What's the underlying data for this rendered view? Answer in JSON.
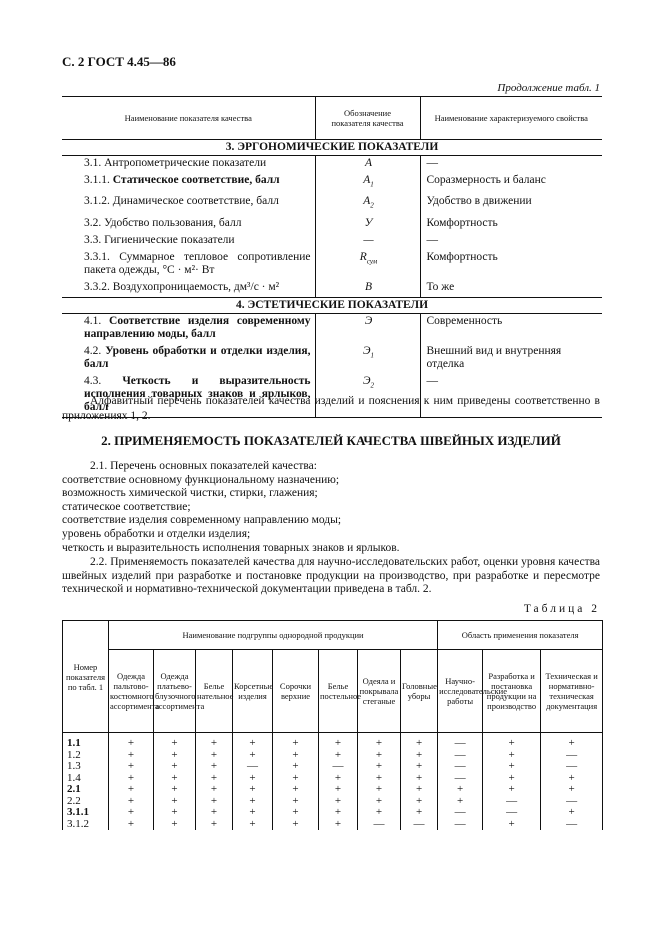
{
  "header": {
    "page": "С. 2 ГОСТ 4.45—86",
    "continuation": "Продолжение табл. 1"
  },
  "table1": {
    "columns": [
      "Наименование показателя качества",
      "Обозначение показателя качества",
      "Наименование характеризуемого свойства"
    ],
    "rows": [
      {
        "section": "3. ЭРГОНОМИЧЕСКИЕ ПОКАЗАТЕЛИ"
      },
      {
        "num": "3.1.",
        "text": "Антропометрические показатели",
        "bold": false,
        "symbol": "А",
        "property": "—"
      },
      {
        "num": "3.1.1.",
        "text": "Статическое соответствие, балл",
        "bold": true,
        "symbol": {
          "main": "A",
          "sub": "1"
        },
        "property": "Соразмерность и баланс"
      },
      {
        "num": "3.1.2.",
        "text": "Динамическое соответствие, балл",
        "bold": false,
        "symbol": {
          "main": "A",
          "sub": "2"
        },
        "property": "Удобство в движении"
      },
      {
        "num": "3.2.",
        "text": "Удобство пользования, балл",
        "bold": false,
        "symbol": "У",
        "property": "Комфортность"
      },
      {
        "num": "3.3.",
        "text": "Гигиенические показатели",
        "bold": false,
        "symbol": "—",
        "property": "—"
      },
      {
        "num": "3.3.1.",
        "text": "Суммарное тепловое сопротивление пакета одежды, °С · м²· Вт",
        "bold": false,
        "symbol": {
          "main": "R",
          "sub": "сум"
        },
        "property": "Комфортность"
      },
      {
        "num": "3.3.2.",
        "text": "Воздухопроницаемость, дм³/с · м²",
        "bold": false,
        "symbol": "В",
        "property": "То же"
      },
      {
        "section": "4. ЭСТЕТИЧЕСКИЕ ПОКАЗАТЕЛИ"
      },
      {
        "num": "4.1.",
        "text": "Соответствие изделия современному направлению моды, балл",
        "bold": true,
        "symbol": "Э",
        "property": "Современность"
      },
      {
        "num": "4.2.",
        "text": "Уровень обработки и отделки изделия, балл",
        "bold": true,
        "symbol": {
          "main": "Э",
          "sub": "1"
        },
        "property": "Внешний вид и внутренняя отделка"
      },
      {
        "num": "4.3.",
        "text": "Четкость и выразительность исполнения товарных знаков и ярлыков, балл",
        "bold": true,
        "symbol": {
          "main": "Э",
          "sub": "2"
        },
        "property": "—"
      }
    ]
  },
  "note": "Алфавитный перечень показателей качества изделий и пояснения к ним приведены соответственно в приложениях 1, 2.",
  "section2": {
    "title": "2. ПРИМЕНЯЕМОСТЬ ПОКАЗАТЕЛЕЙ КАЧЕСТВА ШВЕЙНЫХ ИЗДЕЛИЙ",
    "list_intro": "2.1. Перечень основных показателей качества:",
    "list": [
      "соответствие основному функциональному назначению;",
      "возможность химической чистки, стирки, глажения;",
      "статическое соответствие;",
      "соответствие изделия современному направлению моды;",
      "уровень обработки и отделки изделия;",
      "четкость и выразительность исполнения товарных знаков и ярлыков."
    ],
    "paragraph": "2.2. Применяемость показателей качества для научно-исследовательских работ, оценки уровня качества швейных изделий при разработке и постановке продукции на производство, при разработке и пересмотре технической и нормативно-технической документации приведена в табл. 2."
  },
  "table2": {
    "caption": "Таблица 2",
    "number_header": "Номер показателя по табл. 1",
    "group1": "Наименование подгруппы однородной продукции",
    "group2": "Область применения показателя",
    "products": [
      "Одежда пальтово-костюмного ассортимента",
      "Одежда платьево-блузочного ассортимента",
      "Белье нательное",
      "Корсетные изделия",
      "Сорочки верхние",
      "Белье постельное",
      "Одеяла и покрывала стеганые",
      "Головные уборы"
    ],
    "areas": [
      "Научно-исследовательские работы",
      "Разработка и постановка продукции на производство",
      "Техническая и нормативно-техническая документация"
    ],
    "rows": [
      {
        "num": "1.1",
        "bold": true,
        "marks": [
          "+",
          "+",
          "+",
          "+",
          "+",
          "+",
          "+",
          "+",
          "—",
          "+",
          "+"
        ]
      },
      {
        "num": "1.2",
        "bold": false,
        "marks": [
          "+",
          "+",
          "+",
          "+",
          "+",
          "+",
          "+",
          "+",
          "—",
          "+",
          "—"
        ]
      },
      {
        "num": "1.3",
        "bold": false,
        "marks": [
          "+",
          "+",
          "+",
          "—",
          "+",
          "—",
          "+",
          "+",
          "—",
          "+",
          "—"
        ]
      },
      {
        "num": "1.4",
        "bold": false,
        "marks": [
          "+",
          "+",
          "+",
          "+",
          "+",
          "+",
          "+",
          "+",
          "—",
          "+",
          "+"
        ]
      },
      {
        "num": "2.1",
        "bold": true,
        "marks": [
          "+",
          "+",
          "+",
          "+",
          "+",
          "+",
          "+",
          "+",
          "+",
          "+",
          "+"
        ]
      },
      {
        "num": "2.2",
        "bold": false,
        "marks": [
          "+",
          "+",
          "+",
          "+",
          "+",
          "+",
          "+",
          "+",
          "+",
          "—",
          "—"
        ]
      },
      {
        "num": "3.1.1",
        "bold": true,
        "marks": [
          "+",
          "+",
          "+",
          "+",
          "+",
          "+",
          "+",
          "+",
          "—",
          "—",
          "+"
        ]
      },
      {
        "num": "3.1.2",
        "bold": false,
        "marks": [
          "+",
          "+",
          "+",
          "+",
          "+",
          "+",
          "—",
          "—",
          "—",
          "+",
          "—"
        ]
      }
    ]
  }
}
